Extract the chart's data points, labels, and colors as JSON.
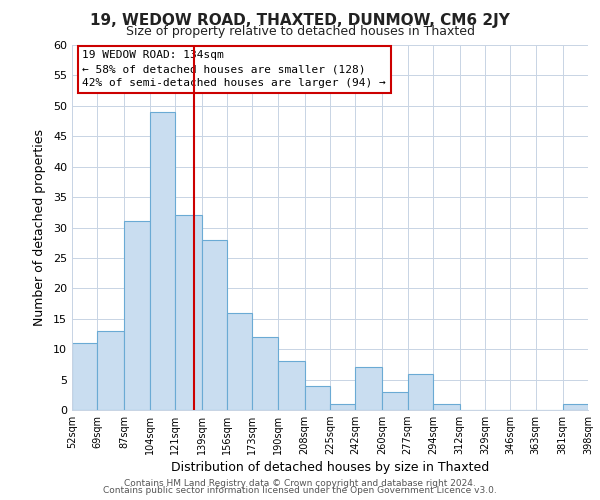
{
  "title": "19, WEDOW ROAD, THAXTED, DUNMOW, CM6 2JY",
  "subtitle": "Size of property relative to detached houses in Thaxted",
  "xlabel": "Distribution of detached houses by size in Thaxted",
  "ylabel": "Number of detached properties",
  "footer_line1": "Contains HM Land Registry data © Crown copyright and database right 2024.",
  "footer_line2": "Contains public sector information licensed under the Open Government Licence v3.0.",
  "bin_edges": [
    52,
    69,
    87,
    104,
    121,
    139,
    156,
    173,
    190,
    208,
    225,
    242,
    260,
    277,
    294,
    312,
    329,
    346,
    363,
    381,
    398
  ],
  "bin_labels": [
    "52sqm",
    "69sqm",
    "87sqm",
    "104sqm",
    "121sqm",
    "139sqm",
    "156sqm",
    "173sqm",
    "190sqm",
    "208sqm",
    "225sqm",
    "242sqm",
    "260sqm",
    "277sqm",
    "294sqm",
    "312sqm",
    "329sqm",
    "346sqm",
    "363sqm",
    "381sqm",
    "398sqm"
  ],
  "counts": [
    11,
    13,
    31,
    49,
    32,
    28,
    16,
    12,
    8,
    4,
    1,
    7,
    3,
    6,
    1,
    0,
    0,
    0,
    0,
    1
  ],
  "bar_color": "#c9ddf0",
  "bar_edge_color": "#6aaad4",
  "property_value": 134,
  "vline_color": "#cc0000",
  "annotation_title": "19 WEDOW ROAD: 134sqm",
  "annotation_line1": "← 58% of detached houses are smaller (128)",
  "annotation_line2": "42% of semi-detached houses are larger (94) →",
  "annotation_box_edge": "#cc0000",
  "ylim": [
    0,
    60
  ],
  "yticks": [
    0,
    5,
    10,
    15,
    20,
    25,
    30,
    35,
    40,
    45,
    50,
    55,
    60
  ],
  "background_color": "#ffffff",
  "grid_color": "#c8d4e4",
  "title_fontsize": 11,
  "subtitle_fontsize": 9,
  "xlabel_fontsize": 9,
  "ylabel_fontsize": 9,
  "xtick_fontsize": 7,
  "ytick_fontsize": 8,
  "footer_fontsize": 6.5,
  "annotation_fontsize": 8
}
